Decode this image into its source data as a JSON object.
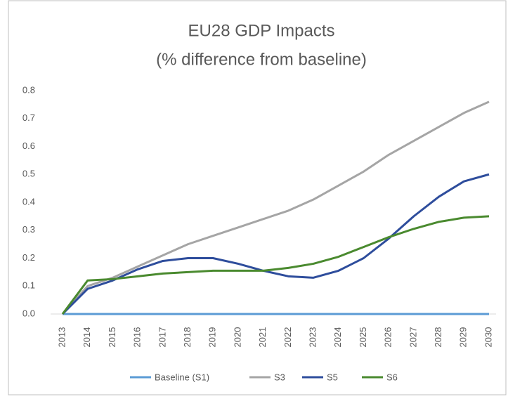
{
  "chart_data": {
    "type": "line",
    "title": "EU28 GDP Impacts",
    "subtitle": "(% difference from baseline)",
    "categories": [
      "2013",
      "2014",
      "2015",
      "2016",
      "2017",
      "2018",
      "2019",
      "2020",
      "2021",
      "2022",
      "2023",
      "2024",
      "2025",
      "2026",
      "2027",
      "2028",
      "2029",
      "2030"
    ],
    "series": [
      {
        "name": "Baseline (S1)",
        "color": "#5b9bd5",
        "values": [
          0,
          0,
          0,
          0,
          0,
          0,
          0,
          0,
          0,
          0,
          0,
          0,
          0,
          0,
          0,
          0,
          0,
          0
        ]
      },
      {
        "name": "S3",
        "color": "#a5a5a5",
        "values": [
          0,
          0.1,
          0.13,
          0.17,
          0.21,
          0.25,
          0.28,
          0.31,
          0.34,
          0.37,
          0.41,
          0.46,
          0.51,
          0.57,
          0.62,
          0.67,
          0.72,
          0.76
        ]
      },
      {
        "name": "S5",
        "color": "#2e4d9c",
        "values": [
          0,
          0.09,
          0.12,
          0.16,
          0.19,
          0.2,
          0.2,
          0.18,
          0.155,
          0.135,
          0.13,
          0.155,
          0.2,
          0.27,
          0.35,
          0.42,
          0.475,
          0.5
        ]
      },
      {
        "name": "S6",
        "color": "#4a8a2f",
        "values": [
          0,
          0.12,
          0.125,
          0.135,
          0.145,
          0.15,
          0.155,
          0.155,
          0.155,
          0.165,
          0.18,
          0.205,
          0.24,
          0.275,
          0.305,
          0.33,
          0.345,
          0.35
        ]
      }
    ],
    "ylim": [
      0,
      0.8
    ],
    "yticks": [
      {
        "value": 0,
        "label": "0.0"
      },
      0.1,
      0.2,
      0.3,
      0.4,
      0.5,
      0.6,
      0.7,
      0.8
    ],
    "grid": false,
    "legend": "bottom"
  }
}
